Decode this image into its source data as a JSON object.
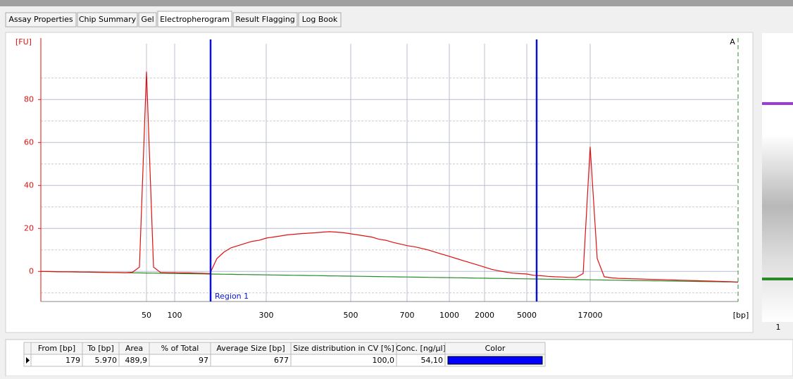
{
  "tabs": [
    "Assay Properties",
    "Chip Summary",
    "Gel",
    "Electropherogram",
    "Result Flagging",
    "Log Book"
  ],
  "active_tab": 3,
  "chart_data": {
    "type": "line",
    "ylabel": "[FU]",
    "xlabel": "[bp]",
    "corner_label": "A",
    "region_label": "Region 1",
    "categories": [
      null,
      null,
      null,
      null,
      null,
      null,
      null,
      null,
      null,
      null,
      null,
      null,
      null,
      null,
      null,
      "50",
      null,
      null,
      null,
      "100",
      null,
      null,
      null,
      null,
      null,
      null,
      null,
      null,
      null,
      null,
      null,
      null,
      "300",
      null,
      null,
      null,
      null,
      null,
      null,
      null,
      null,
      null,
      null,
      null,
      "500",
      null,
      null,
      null,
      null,
      null,
      null,
      null,
      "700",
      null,
      null,
      null,
      null,
      null,
      "1000",
      null,
      null,
      null,
      null,
      "2000",
      null,
      null,
      null,
      null,
      null,
      "5000",
      null,
      null,
      null,
      null,
      null,
      null,
      null,
      null,
      "17000",
      null,
      null,
      null,
      null,
      null,
      null,
      null,
      null,
      null,
      null,
      null,
      null,
      null,
      null,
      null,
      null,
      null,
      null,
      null,
      null,
      null
    ],
    "series": [
      {
        "color": "#e01010",
        "values": [
          0,
          0,
          -0.1,
          -0.2,
          -0.2,
          -0.2,
          -0.3,
          -0.3,
          -0.4,
          -0.4,
          -0.5,
          -0.5,
          -0.6,
          -0.4,
          2,
          93,
          2,
          -0.5,
          -0.6,
          -0.6,
          -0.7,
          -0.7,
          -0.8,
          -0.9,
          -1,
          6,
          9,
          11,
          12,
          13,
          14,
          14.5,
          15.5,
          16,
          16.5,
          17,
          17.3,
          17.6,
          17.8,
          18,
          18.3,
          18.5,
          18.3,
          18,
          17.5,
          17,
          16.5,
          16,
          15,
          14.5,
          13.5,
          12.8,
          12,
          11.5,
          10.8,
          10,
          9,
          8,
          7,
          6,
          5,
          4,
          3,
          2,
          1,
          0.3,
          -0.3,
          -0.8,
          -1,
          -1.2,
          -1.8,
          -2,
          -2.3,
          -2.5,
          -2.6,
          -2.8,
          -2.8,
          -1,
          58,
          6,
          -2.5,
          -3,
          -3.2,
          -3.3,
          -3.4,
          -3.5,
          -3.6,
          -3.7,
          -3.8,
          -3.9,
          -4,
          -4.1,
          -4.2,
          -4.3,
          -4.4,
          -4.5,
          -4.6,
          -4.7,
          -4.8,
          -5
        ]
      },
      {
        "color": "#2a8a2a",
        "values": [
          0,
          -0.05,
          -0.1,
          -0.15,
          -0.2,
          -0.25,
          -0.3,
          -0.35,
          -0.4,
          -0.45,
          -0.5,
          -0.55,
          -0.6,
          -0.65,
          -0.7,
          -0.75,
          -0.8,
          -0.85,
          -0.9,
          -0.95,
          -1,
          -1.05,
          -1.1,
          -1.15,
          -1.2,
          -1.25,
          -1.3,
          -1.35,
          -1.4,
          -1.45,
          -1.5,
          -1.55,
          -1.6,
          -1.65,
          -1.7,
          -1.75,
          -1.8,
          -1.85,
          -1.9,
          -1.95,
          -2,
          -2.05,
          -2.1,
          -2.15,
          -2.2,
          -2.25,
          -2.3,
          -2.35,
          -2.4,
          -2.45,
          -2.5,
          -2.55,
          -2.6,
          -2.65,
          -2.7,
          -2.75,
          -2.8,
          -2.85,
          -2.9,
          -2.95,
          -3,
          -3.05,
          -3.1,
          -3.15,
          -3.2,
          -3.25,
          -3.3,
          -3.35,
          -3.4,
          -3.45,
          -3.5,
          -3.55,
          -3.6,
          -3.65,
          -3.7,
          -3.75,
          -3.8,
          -3.85,
          -3.9,
          -3.95,
          -4,
          -4.05,
          -4.1,
          -4.15,
          -4.2,
          -4.25,
          -4.3,
          -4.35,
          -4.4,
          -4.45,
          -4.5,
          -4.55,
          -4.6,
          -4.65,
          -4.7,
          -4.75,
          -4.8,
          -4.85,
          -4.9,
          -4.95
        ]
      }
    ],
    "ylim": [
      -14,
      106
    ],
    "yticks": [
      0,
      20,
      40,
      60,
      80
    ],
    "grid": true,
    "region_color": "#0a14d0"
  },
  "gel": {
    "lane_label": "1"
  },
  "table": {
    "columns": [
      "From [bp]",
      "To [bp]",
      "Area",
      "% of Total",
      "Average Size [bp]",
      "Size distribution in CV [%]",
      "Conc. [ng/µl]",
      "Color"
    ],
    "rows": [
      [
        "179",
        "5.970",
        "489,9",
        "97",
        "677",
        "100,0",
        "54,10"
      ]
    ],
    "row_colors": [
      "#0000ff"
    ]
  }
}
